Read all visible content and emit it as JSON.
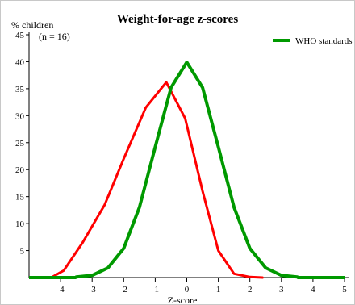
{
  "chart_data": {
    "type": "line",
    "title": "Weight-for-age z-scores",
    "ylabel": "% children",
    "sample_note": "(n = 16)",
    "xlabel": "Z-score",
    "xlim": [
      -5,
      5
    ],
    "ylim": [
      0,
      45
    ],
    "xticks": [
      "-4",
      "-3",
      "-2",
      "-1",
      "0",
      "1",
      "2",
      "3",
      "4",
      "5"
    ],
    "yticks": [
      "5",
      "10",
      "15",
      "20",
      "25",
      "30",
      "35",
      "40",
      "45"
    ],
    "grid": false,
    "legend_position": "top-right",
    "series": [
      {
        "name": "",
        "color": "#ff0000",
        "x": [
          -4.3,
          -3.9,
          -3.3,
          -2.6,
          -2.0,
          -1.3,
          -0.65,
          -0.05,
          0.5,
          1.0,
          1.5,
          2.0,
          2.4
        ],
        "y": [
          0.0,
          1.3,
          6.5,
          13.5,
          22.0,
          31.5,
          36.2,
          29.5,
          16.0,
          5.0,
          0.7,
          0.1,
          0.0
        ]
      },
      {
        "name": "WHO standards",
        "color": "#009900",
        "x": [
          -3.5,
          -3.0,
          -2.5,
          -2.0,
          -1.5,
          -1.0,
          -0.5,
          0.0,
          0.5,
          1.0,
          1.5,
          2.0,
          2.5,
          3.0,
          3.5
        ],
        "y": [
          0.1,
          0.4,
          1.8,
          5.4,
          13.0,
          24.2,
          35.2,
          39.9,
          35.2,
          24.2,
          13.0,
          5.4,
          1.8,
          0.4,
          0.1
        ]
      }
    ]
  }
}
